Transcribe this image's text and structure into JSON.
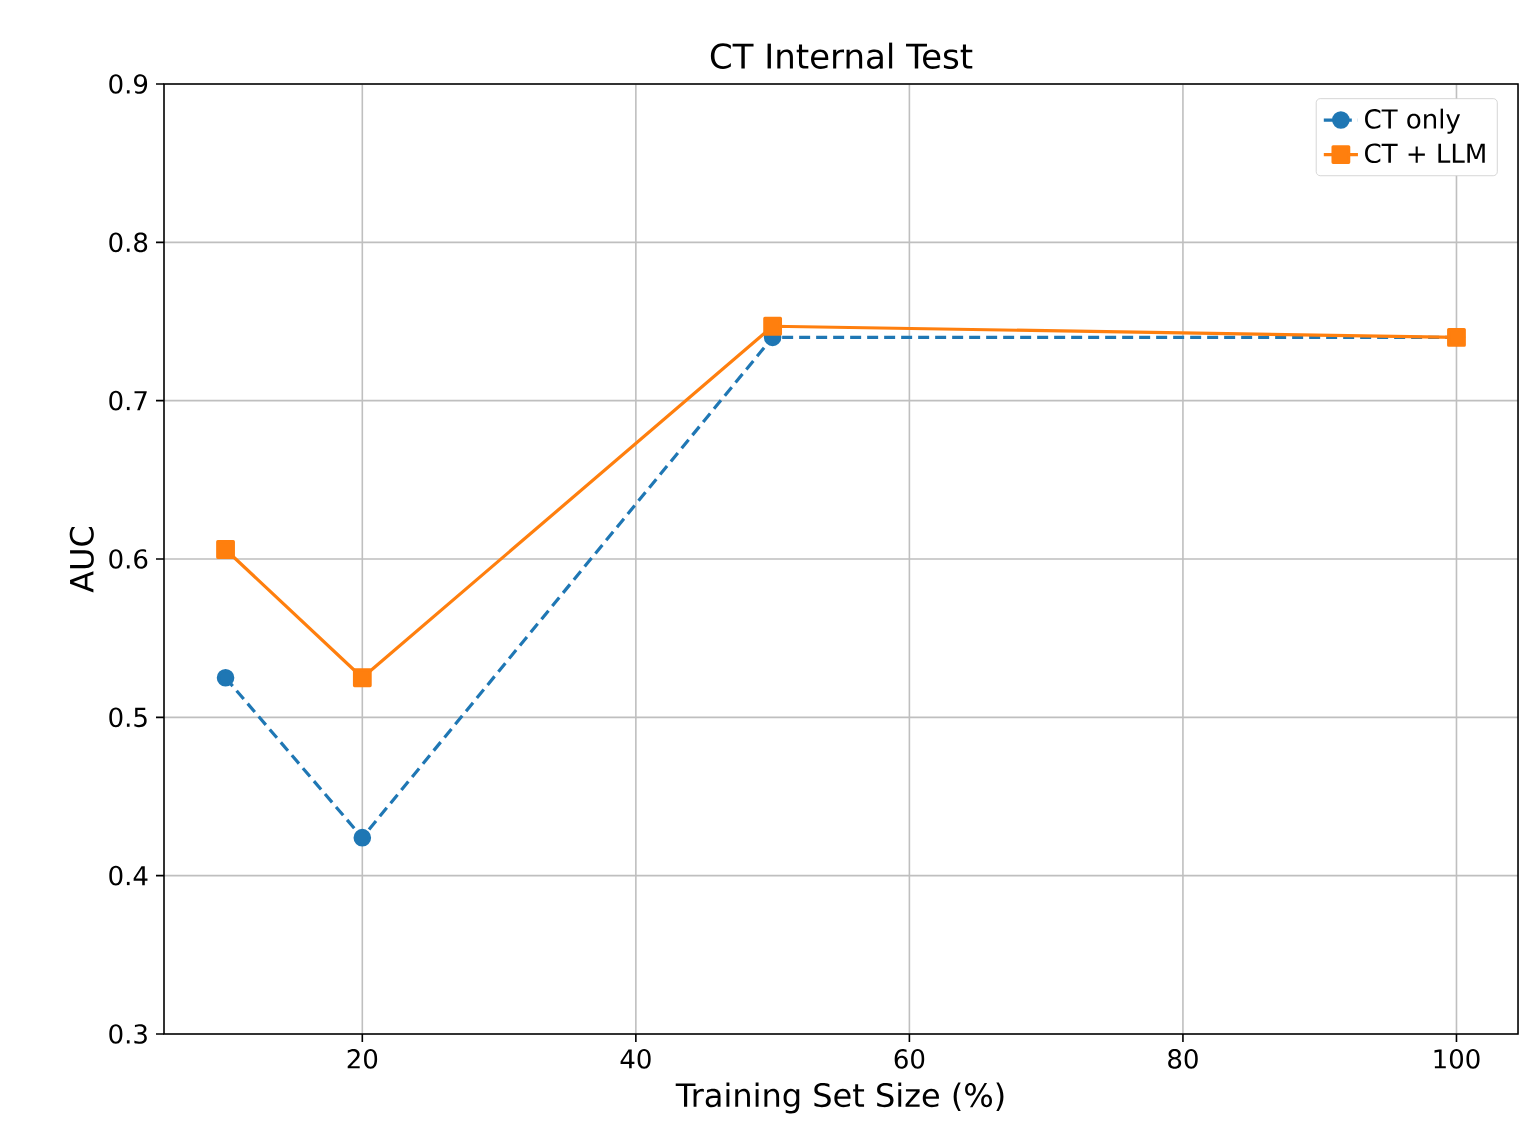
{
  "chart_data": {
    "type": "line",
    "title": "CT Internal Test",
    "xlabel": "Training Set Size (%)",
    "ylabel": "AUC",
    "x": [
      10,
      20,
      50,
      100
    ],
    "series": [
      {
        "name": "CT only",
        "color": "#1f77b4",
        "marker": "circle",
        "line_style": "dashed",
        "values": [
          0.525,
          0.424,
          0.74,
          0.74
        ]
      },
      {
        "name": "CT + LLM",
        "color": "#ff7f0e",
        "marker": "square",
        "line_style": "solid",
        "values": [
          0.606,
          0.525,
          0.747,
          0.74
        ]
      }
    ],
    "xlim": [
      5.5,
      104.5
    ],
    "ylim": [
      0.3,
      0.9
    ],
    "xticks": [
      20,
      40,
      60,
      80,
      100
    ],
    "yticks": [
      0.3,
      0.4,
      0.5,
      0.6,
      0.7,
      0.8,
      0.9
    ],
    "grid": true,
    "legend": "top right"
  }
}
